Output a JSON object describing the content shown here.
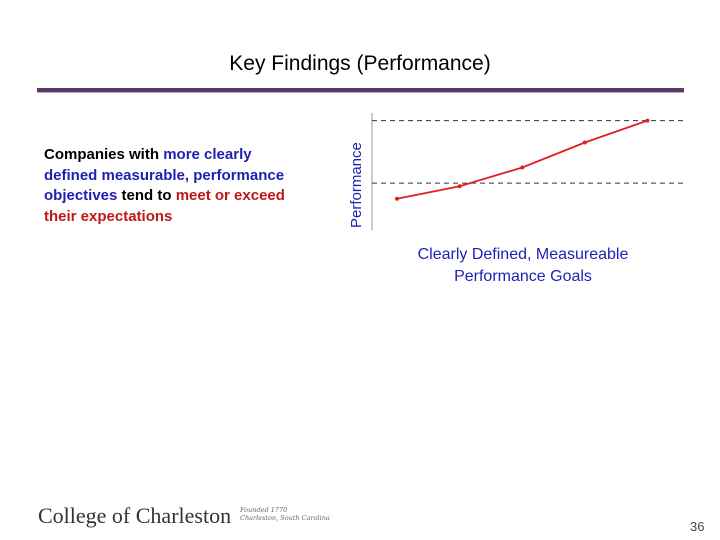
{
  "slide": {
    "title": "Key Findings (Performance)",
    "page_number": "36"
  },
  "bullet": {
    "t1": "Companies with ",
    "t2": "more clearly defined measurable, performance objectives",
    "t3": " tend to ",
    "t4": "meet or exceed their expectations"
  },
  "chart_data": {
    "type": "line",
    "ylabel": "Performance",
    "xlabel_line1": "Clearly Defined, Measureable",
    "xlabel_line2": "Performance Goals",
    "series": [
      {
        "x": [
          1,
          2,
          3,
          4,
          5
        ],
        "y": [
          2.0,
          2.8,
          4.0,
          5.6,
          7.0
        ]
      }
    ],
    "reference_lines_y": [
      3.0,
      7.0
    ],
    "xlim": [
      0.6,
      5.6
    ],
    "ylim": [
      0,
      8
    ],
    "line_color": "#e02020",
    "axis_color": "#999999"
  },
  "footer": {
    "logo": "College of Charleston",
    "logo_sub1": "Founded 1770",
    "logo_sub2": "Charleston, South Carolina"
  },
  "colors": {
    "title_rule": "#5b3a66",
    "text_blue": "#1f1fb4",
    "text_red": "#c01818"
  }
}
